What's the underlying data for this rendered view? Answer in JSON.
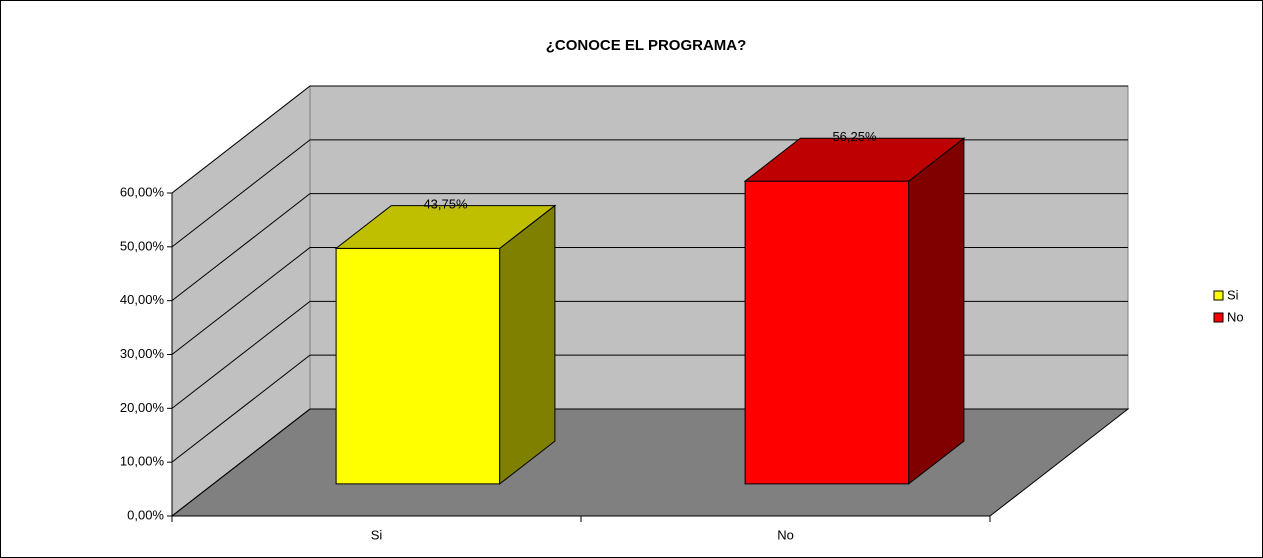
{
  "chart_data": {
    "type": "bar3d",
    "title": "¿CONOCE EL PROGRAMA?",
    "categories": [
      "Si",
      "No"
    ],
    "values": [
      43.75,
      56.25
    ],
    "value_labels": [
      "43,75%",
      "56,25%"
    ],
    "colors": [
      "#ffff00",
      "#ff0000"
    ],
    "ylim": [
      0,
      60
    ],
    "yticks": [
      {
        "value": 0,
        "label": "0,00%"
      },
      {
        "value": 10,
        "label": "10,00%"
      },
      {
        "value": 20,
        "label": "20,00%"
      },
      {
        "value": 30,
        "label": "30,00%"
      },
      {
        "value": 40,
        "label": "40,00%"
      },
      {
        "value": 50,
        "label": "50,00%"
      },
      {
        "value": 60,
        "label": "60,00%"
      }
    ],
    "grid": true,
    "legend": "right"
  }
}
